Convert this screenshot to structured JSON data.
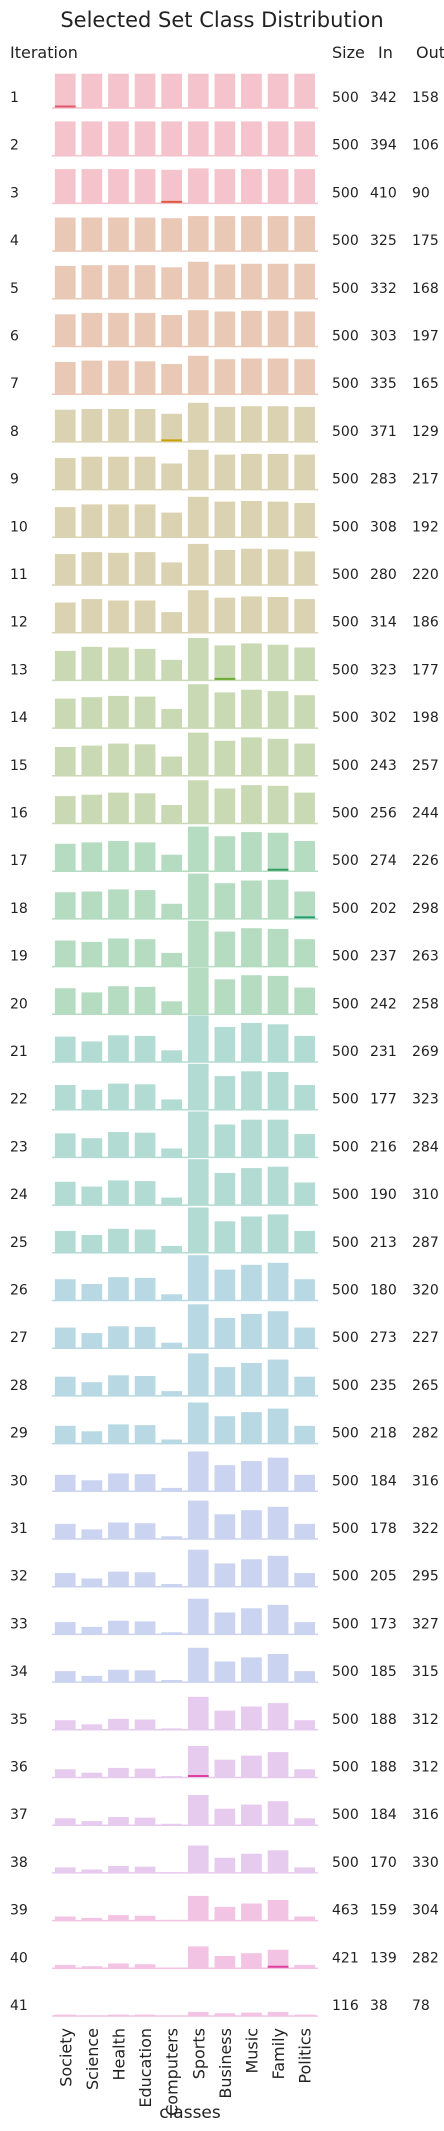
{
  "chart_data": {
    "type": "bar",
    "title": "Selected Set Class Distribution",
    "xlabel": "classes",
    "row_header": "Iteration",
    "column_headers": [
      "Size",
      "In",
      "Out"
    ],
    "categories": [
      "Society",
      "Science",
      "Health",
      "Education",
      "Computers",
      "Sports",
      "Business",
      "Music",
      "Family",
      "Politics"
    ],
    "iterations": [
      {
        "iteration": "1",
        "size": "500",
        "in": "342",
        "out": "158",
        "values": [
          50,
          50,
          50,
          50,
          50,
          50,
          50,
          50,
          50,
          50
        ]
      },
      {
        "iteration": "2",
        "size": "500",
        "in": "394",
        "out": "106",
        "values": [
          50,
          50,
          50,
          50,
          50,
          50,
          50,
          50,
          50,
          50
        ]
      },
      {
        "iteration": "3",
        "size": "500",
        "in": "410",
        "out": "90",
        "values": [
          50,
          50,
          50,
          50,
          49,
          51,
          50,
          50,
          50,
          50
        ]
      },
      {
        "iteration": "4",
        "size": "500",
        "in": "325",
        "out": "175",
        "values": [
          49,
          49,
          49,
          49,
          48,
          51,
          51,
          51,
          51,
          51
        ]
      },
      {
        "iteration": "5",
        "size": "500",
        "in": "332",
        "out": "168",
        "values": [
          48,
          49,
          49,
          49,
          46,
          54,
          50,
          51,
          51,
          51
        ]
      },
      {
        "iteration": "6",
        "size": "500",
        "in": "303",
        "out": "197",
        "values": [
          47,
          49,
          49,
          49,
          46,
          53,
          51,
          52,
          52,
          51
        ]
      },
      {
        "iteration": "7",
        "size": "500",
        "in": "335",
        "out": "165",
        "values": [
          47,
          49,
          49,
          48,
          44,
          56,
          51,
          52,
          52,
          51
        ]
      },
      {
        "iteration": "8",
        "size": "500",
        "in": "371",
        "out": "129",
        "values": [
          47,
          48,
          48,
          48,
          41,
          57,
          51,
          52,
          52,
          51
        ]
      },
      {
        "iteration": "9",
        "size": "500",
        "in": "283",
        "out": "217",
        "values": [
          46,
          48,
          48,
          48,
          38,
          58,
          51,
          52,
          52,
          51
        ]
      },
      {
        "iteration": "10",
        "size": "500",
        "in": "308",
        "out": "192",
        "values": [
          44,
          48,
          48,
          48,
          36,
          59,
          52,
          53,
          52,
          50
        ]
      },
      {
        "iteration": "11",
        "size": "500",
        "in": "280",
        "out": "220",
        "values": [
          45,
          48,
          47,
          48,
          33,
          60,
          51,
          53,
          52,
          49
        ]
      },
      {
        "iteration": "12",
        "size": "500",
        "in": "314",
        "out": "186",
        "values": [
          44,
          49,
          47,
          47,
          30,
          62,
          51,
          53,
          52,
          49
        ]
      },
      {
        "iteration": "13",
        "size": "500",
        "in": "323",
        "out": "177",
        "values": [
          43,
          49,
          48,
          46,
          30,
          62,
          51,
          54,
          52,
          48
        ]
      },
      {
        "iteration": "14",
        "size": "500",
        "in": "302",
        "out": "198",
        "values": [
          43,
          45,
          47,
          46,
          28,
          64,
          52,
          56,
          54,
          48
        ]
      },
      {
        "iteration": "15",
        "size": "500",
        "in": "243",
        "out": "257",
        "values": [
          42,
          44,
          47,
          46,
          28,
          63,
          51,
          56,
          54,
          47
        ]
      },
      {
        "iteration": "16",
        "size": "500",
        "in": "256",
        "out": "244",
        "values": [
          40,
          42,
          45,
          44,
          27,
          63,
          51,
          56,
          55,
          45
        ]
      },
      {
        "iteration": "17",
        "size": "500",
        "in": "274",
        "out": "226",
        "values": [
          40,
          42,
          44,
          42,
          24,
          65,
          51,
          57,
          56,
          44
        ]
      },
      {
        "iteration": "18",
        "size": "500",
        "in": "202",
        "out": "298",
        "values": [
          39,
          40,
          43,
          42,
          22,
          66,
          52,
          56,
          57,
          40
        ]
      },
      {
        "iteration": "19",
        "size": "500",
        "in": "237",
        "out": "263",
        "values": [
          38,
          36,
          41,
          40,
          20,
          67,
          51,
          56,
          55,
          40
        ]
      },
      {
        "iteration": "20",
        "size": "500",
        "in": "242",
        "out": "258",
        "values": [
          38,
          32,
          41,
          40,
          19,
          68,
          51,
          57,
          56,
          39
        ]
      },
      {
        "iteration": "21",
        "size": "500",
        "in": "231",
        "out": "269",
        "values": [
          37,
          30,
          39,
          38,
          17,
          68,
          51,
          57,
          55,
          38
        ]
      },
      {
        "iteration": "22",
        "size": "500",
        "in": "177",
        "out": "323",
        "values": [
          36,
          29,
          38,
          37,
          15,
          67,
          49,
          56,
          55,
          36
        ]
      },
      {
        "iteration": "23",
        "size": "500",
        "in": "216",
        "out": "284",
        "values": [
          35,
          28,
          37,
          36,
          13,
          67,
          48,
          55,
          55,
          34
        ]
      },
      {
        "iteration": "24",
        "size": "500",
        "in": "190",
        "out": "310",
        "values": [
          34,
          27,
          36,
          35,
          11,
          67,
          47,
          54,
          56,
          33
        ]
      },
      {
        "iteration": "25",
        "size": "500",
        "in": "213",
        "out": "287",
        "values": [
          32,
          26,
          35,
          34,
          10,
          66,
          46,
          53,
          56,
          32
        ]
      },
      {
        "iteration": "26",
        "size": "500",
        "in": "180",
        "out": "320",
        "values": [
          31,
          24,
          34,
          33,
          9,
          66,
          45,
          52,
          55,
          31
        ]
      },
      {
        "iteration": "27",
        "size": "500",
        "in": "273",
        "out": "227",
        "values": [
          30,
          22,
          32,
          31,
          8,
          64,
          44,
          50,
          54,
          30
        ]
      },
      {
        "iteration": "28",
        "size": "500",
        "in": "235",
        "out": "265",
        "values": [
          28,
          20,
          30,
          29,
          7,
          62,
          42,
          48,
          53,
          28
        ]
      },
      {
        "iteration": "29",
        "size": "500",
        "in": "218",
        "out": "282",
        "values": [
          26,
          18,
          28,
          27,
          6,
          60,
          40,
          46,
          51,
          26
        ]
      },
      {
        "iteration": "30",
        "size": "500",
        "in": "184",
        "out": "316",
        "values": [
          24,
          16,
          26,
          25,
          5,
          58,
          38,
          44,
          49,
          24
        ]
      },
      {
        "iteration": "31",
        "size": "500",
        "in": "178",
        "out": "322",
        "values": [
          22,
          14,
          24,
          23,
          4,
          56,
          36,
          42,
          47,
          22
        ]
      },
      {
        "iteration": "32",
        "size": "500",
        "in": "205",
        "out": "295",
        "values": [
          20,
          12,
          22,
          21,
          4,
          54,
          34,
          40,
          45,
          20
        ]
      },
      {
        "iteration": "33",
        "size": "500",
        "in": "173",
        "out": "327",
        "values": [
          18,
          11,
          20,
          19,
          3,
          52,
          32,
          38,
          43,
          18
        ]
      },
      {
        "iteration": "34",
        "size": "500",
        "in": "185",
        "out": "315",
        "values": [
          16,
          9,
          18,
          17,
          3,
          50,
          30,
          36,
          41,
          16
        ]
      },
      {
        "iteration": "35",
        "size": "500",
        "in": "188",
        "out": "312",
        "values": [
          14,
          8,
          16,
          15,
          2,
          48,
          28,
          34,
          39,
          14
        ]
      },
      {
        "iteration": "36",
        "size": "500",
        "in": "188",
        "out": "312",
        "values": [
          12,
          7,
          14,
          13,
          2,
          46,
          26,
          32,
          37,
          12
        ]
      },
      {
        "iteration": "37",
        "size": "500",
        "in": "184",
        "out": "316",
        "values": [
          10,
          6,
          12,
          11,
          2,
          44,
          24,
          30,
          35,
          10
        ]
      },
      {
        "iteration": "38",
        "size": "500",
        "in": "170",
        "out": "330",
        "values": [
          8,
          5,
          10,
          9,
          1,
          40,
          22,
          28,
          33,
          8
        ]
      },
      {
        "iteration": "39",
        "size": "463",
        "in": "159",
        "out": "304",
        "values": [
          6,
          4,
          8,
          7,
          1,
          36,
          20,
          25,
          30,
          6
        ]
      },
      {
        "iteration": "40",
        "size": "421",
        "in": "139",
        "out": "282",
        "values": [
          5,
          3,
          7,
          6,
          1,
          32,
          18,
          22,
          27,
          5
        ]
      },
      {
        "iteration": "41",
        "size": "116",
        "in": "38",
        "out": "78",
        "values": [
          2,
          1,
          2,
          2,
          0,
          6,
          4,
          5,
          6,
          2
        ]
      }
    ],
    "row_colors": [
      "#f4c3cb",
      "#eac8b6",
      "#dbd2b1",
      "#c9d9b3",
      "#b5dbc0",
      "#b2dbd3",
      "#b8d8e4",
      "#cad3f0",
      "#e6cbef",
      "#f3c3e4"
    ],
    "accent_lines": [
      {
        "iteration": "1",
        "class": "Society",
        "color": "#e05a6e"
      },
      {
        "iteration": "3",
        "class": "Computers",
        "color": "#e05a40"
      },
      {
        "iteration": "8",
        "class": "Computers",
        "color": "#c8a000"
      },
      {
        "iteration": "13",
        "class": "Business",
        "color": "#6aaa30"
      },
      {
        "iteration": "17",
        "class": "Family",
        "color": "#30a060"
      },
      {
        "iteration": "18",
        "class": "Politics",
        "color": "#20a070"
      },
      {
        "iteration": "36",
        "class": "Sports",
        "color": "#e040a0"
      },
      {
        "iteration": "40",
        "class": "Family",
        "color": "#e040a0"
      }
    ],
    "ylim": [
      0,
      70
    ]
  }
}
